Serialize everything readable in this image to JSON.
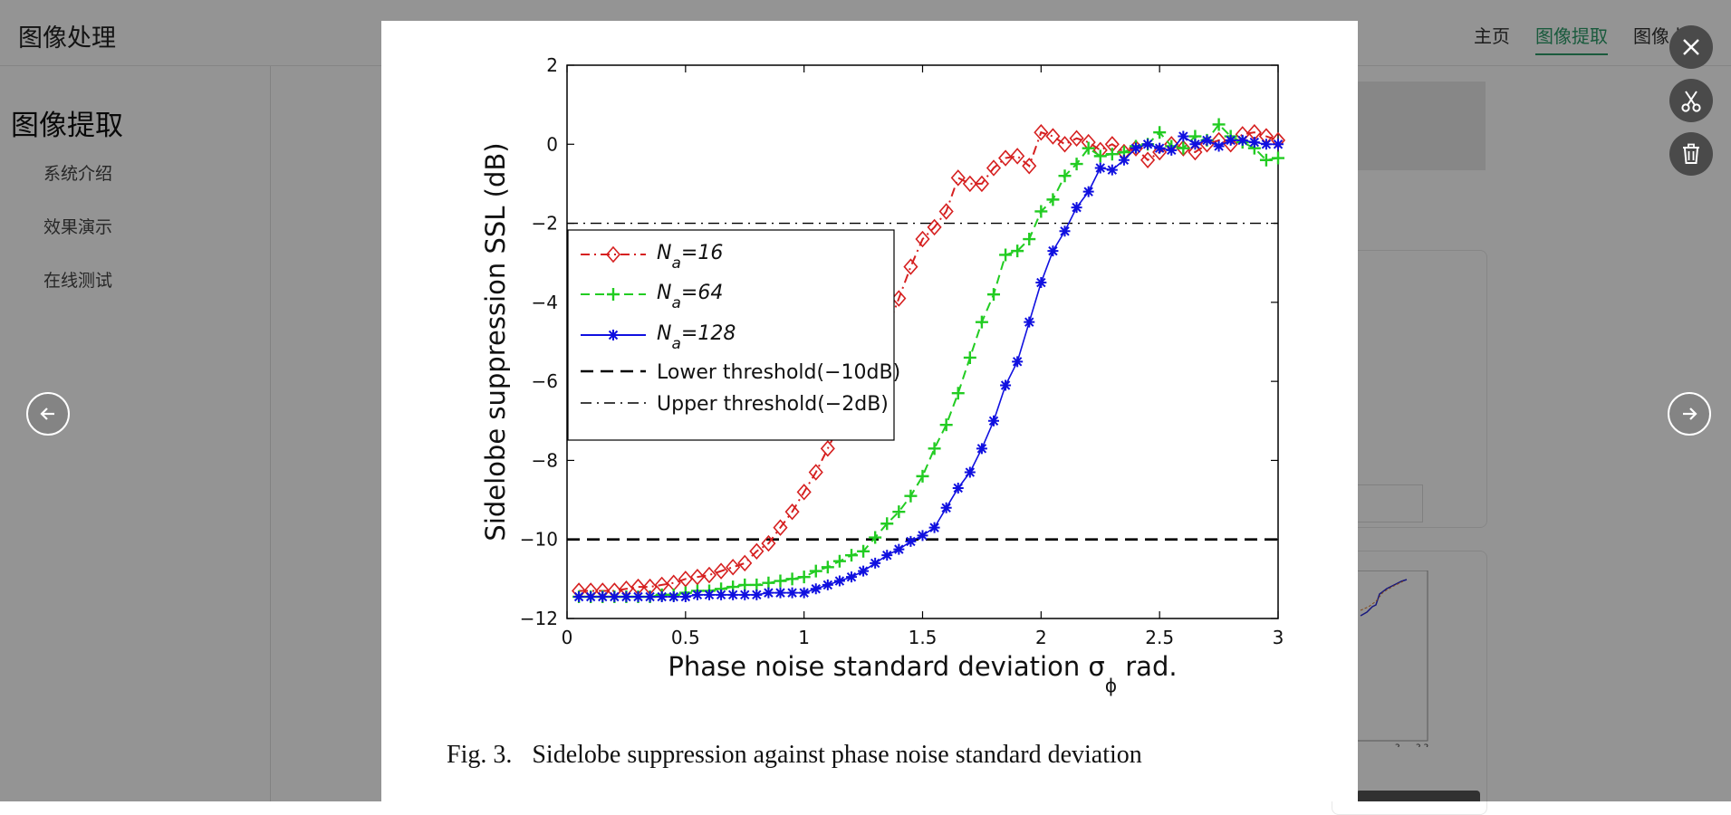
{
  "header": {
    "app_title": "图像处理",
    "nav": [
      {
        "label": "主页"
      },
      {
        "label": "图像提取",
        "active": true
      },
      {
        "label": "图像上色"
      }
    ]
  },
  "sidebar": {
    "heading": "图像提取",
    "items": [
      {
        "label": "系统介绍"
      },
      {
        "label": "效果演示"
      },
      {
        "label": "在线测试"
      }
    ]
  },
  "viewer": {
    "tools": [
      "close-icon",
      "scissors-icon",
      "trash-icon"
    ],
    "prev_icon": "arrow-left-icon",
    "next_icon": "arrow-right-icon",
    "caption_prefix": "Fig. 3.",
    "caption_text": "Sidelobe suppression against phase noise standard deviation"
  },
  "chart_data": {
    "type": "line",
    "xlabel": "Phase noise standard deviation σ",
    "xlabel_sub": "ϕ",
    "xlabel_suffix": " rad.",
    "ylabel": "Sidelobe suppression SSL (dB)",
    "xlim": [
      0,
      3
    ],
    "ylim": [
      -12,
      2
    ],
    "xticks": [
      0,
      0.5,
      1,
      1.5,
      2,
      2.5,
      3
    ],
    "xtick_labels": [
      "0",
      "0.5",
      "1",
      "1.5",
      "2",
      "2.5",
      "3"
    ],
    "yticks": [
      -12,
      -10,
      -8,
      -6,
      -4,
      -2,
      0,
      2
    ],
    "ytick_labels": [
      "−12",
      "−10",
      "−8",
      "−6",
      "−4",
      "−2",
      "0",
      "2"
    ],
    "grid": false,
    "legend_position": "upper-left",
    "reference_lines": [
      {
        "name": "Lower threshold(−10dB)",
        "y": -10,
        "style": "dashed",
        "color": "#000000"
      },
      {
        "name": "Upper threshold(−2dB)",
        "y": -2,
        "style": "dashdot",
        "color": "#000000"
      }
    ],
    "series": [
      {
        "name_main": "N",
        "name_sub": "a",
        "name_suffix": "=16",
        "color": "#d62020",
        "marker": "diamond",
        "line": "dashdot",
        "x": [
          0.05,
          0.1,
          0.15,
          0.2,
          0.25,
          0.3,
          0.35,
          0.4,
          0.45,
          0.5,
          0.55,
          0.6,
          0.65,
          0.7,
          0.75,
          0.8,
          0.85,
          0.9,
          0.95,
          1.0,
          1.05,
          1.1,
          1.15,
          1.2,
          1.25,
          1.3,
          1.35,
          1.4,
          1.45,
          1.5,
          1.55,
          1.6,
          1.65,
          1.7,
          1.75,
          1.8,
          1.85,
          1.9,
          1.95,
          2.0,
          2.05,
          2.1,
          2.15,
          2.2,
          2.25,
          2.3,
          2.35,
          2.4,
          2.45,
          2.5,
          2.55,
          2.6,
          2.65,
          2.7,
          2.75,
          2.8,
          2.85,
          2.9,
          2.95,
          3.0
        ],
        "y": [
          -11.3,
          -11.3,
          -11.3,
          -11.3,
          -11.25,
          -11.2,
          -11.2,
          -11.15,
          -11.1,
          -11.0,
          -10.95,
          -10.9,
          -10.8,
          -10.7,
          -10.6,
          -10.3,
          -10.1,
          -9.7,
          -9.3,
          -8.8,
          -8.3,
          -7.7,
          -7.1,
          -6.6,
          -5.8,
          -4.9,
          -4.7,
          -3.9,
          -3.1,
          -2.4,
          -2.1,
          -1.7,
          -0.85,
          -1.0,
          -1.0,
          -0.6,
          -0.35,
          -0.3,
          -0.55,
          0.3,
          0.2,
          0.0,
          0.15,
          0.05,
          -0.15,
          0.0,
          -0.2,
          -0.1,
          -0.4,
          -0.2,
          0.0,
          -0.1,
          -0.2,
          0.0,
          0.1,
          0.0,
          0.25,
          0.3,
          0.2,
          0.1
        ]
      },
      {
        "name_main": "N",
        "name_sub": "a",
        "name_suffix": "=64",
        "color": "#22cc22",
        "marker": "plus",
        "line": "dashed",
        "x": [
          0.05,
          0.1,
          0.15,
          0.2,
          0.25,
          0.3,
          0.35,
          0.4,
          0.45,
          0.5,
          0.55,
          0.6,
          0.65,
          0.7,
          0.75,
          0.8,
          0.85,
          0.9,
          0.95,
          1.0,
          1.05,
          1.1,
          1.15,
          1.2,
          1.25,
          1.3,
          1.35,
          1.4,
          1.45,
          1.5,
          1.55,
          1.6,
          1.65,
          1.7,
          1.75,
          1.8,
          1.85,
          1.9,
          1.95,
          2.0,
          2.05,
          2.1,
          2.15,
          2.2,
          2.25,
          2.3,
          2.35,
          2.4,
          2.45,
          2.5,
          2.55,
          2.6,
          2.65,
          2.7,
          2.75,
          2.8,
          2.85,
          2.9,
          2.95,
          3.0
        ],
        "y": [
          -11.45,
          -11.45,
          -11.45,
          -11.45,
          -11.45,
          -11.45,
          -11.45,
          -11.4,
          -11.4,
          -11.35,
          -11.3,
          -11.3,
          -11.25,
          -11.2,
          -11.15,
          -11.15,
          -11.1,
          -11.05,
          -11.0,
          -10.95,
          -10.8,
          -10.7,
          -10.55,
          -10.4,
          -10.3,
          -9.95,
          -9.6,
          -9.3,
          -8.9,
          -8.4,
          -7.7,
          -7.1,
          -6.3,
          -5.4,
          -4.5,
          -3.8,
          -2.8,
          -2.7,
          -2.4,
          -1.7,
          -1.4,
          -0.8,
          -0.5,
          -0.1,
          -0.3,
          -0.25,
          -0.2,
          -0.05,
          0.0,
          0.3,
          -0.05,
          -0.1,
          0.2,
          0.1,
          0.5,
          0.2,
          0.05,
          -0.1,
          -0.4,
          -0.35
        ]
      },
      {
        "name_main": "N",
        "name_sub": "a",
        "name_suffix": "=128",
        "color": "#1010e0",
        "marker": "asterisk",
        "line": "solid",
        "x": [
          0.05,
          0.1,
          0.15,
          0.2,
          0.25,
          0.3,
          0.35,
          0.4,
          0.45,
          0.5,
          0.55,
          0.6,
          0.65,
          0.7,
          0.75,
          0.8,
          0.85,
          0.9,
          0.95,
          1.0,
          1.05,
          1.1,
          1.15,
          1.2,
          1.25,
          1.3,
          1.35,
          1.4,
          1.45,
          1.5,
          1.55,
          1.6,
          1.65,
          1.7,
          1.75,
          1.8,
          1.85,
          1.9,
          1.95,
          2.0,
          2.05,
          2.1,
          2.15,
          2.2,
          2.25,
          2.3,
          2.35,
          2.4,
          2.45,
          2.5,
          2.55,
          2.6,
          2.65,
          2.7,
          2.75,
          2.8,
          2.85,
          2.9,
          2.95,
          3.0
        ],
        "y": [
          -11.45,
          -11.45,
          -11.45,
          -11.45,
          -11.45,
          -11.45,
          -11.45,
          -11.45,
          -11.45,
          -11.45,
          -11.4,
          -11.4,
          -11.4,
          -11.4,
          -11.4,
          -11.4,
          -11.35,
          -11.35,
          -11.35,
          -11.35,
          -11.25,
          -11.15,
          -11.05,
          -10.95,
          -10.8,
          -10.6,
          -10.4,
          -10.25,
          -10.05,
          -9.9,
          -9.7,
          -9.2,
          -8.7,
          -8.3,
          -7.7,
          -7.0,
          -6.1,
          -5.5,
          -4.5,
          -3.5,
          -2.7,
          -2.2,
          -1.6,
          -1.2,
          -0.6,
          -0.65,
          -0.4,
          -0.1,
          0.0,
          -0.1,
          -0.15,
          0.2,
          0.0,
          0.1,
          -0.05,
          0.1,
          0.1,
          0.05,
          0.0,
          0.0
        ]
      }
    ]
  }
}
